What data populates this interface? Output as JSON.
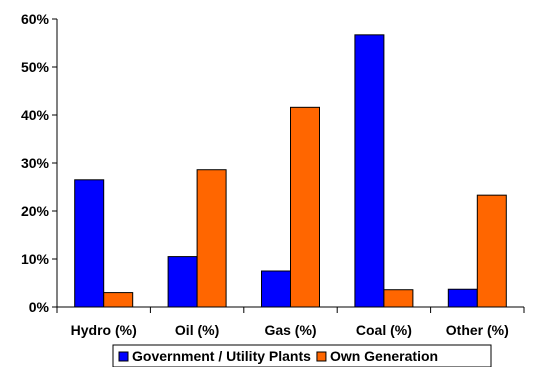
{
  "chart_data": {
    "type": "bar",
    "categories": [
      "Hydro (%)",
      "Oil (%)",
      "Gas (%)",
      "Coal (%)",
      "Other (%)"
    ],
    "series": [
      {
        "name": "Government / Utility Plants",
        "color": "#0000ff",
        "values": [
          26.5,
          10.5,
          7.5,
          56.7,
          3.7
        ]
      },
      {
        "name": "Own Generation",
        "color": "#ff6600",
        "values": [
          3.0,
          28.6,
          41.6,
          3.6,
          23.3
        ]
      }
    ],
    "yticks": [
      "0%",
      "10%",
      "20%",
      "30%",
      "40%",
      "50%",
      "60%"
    ],
    "ylim": [
      0,
      60
    ],
    "grid": false,
    "legend_position": "bottom",
    "title": "",
    "xlabel": "",
    "ylabel": ""
  }
}
